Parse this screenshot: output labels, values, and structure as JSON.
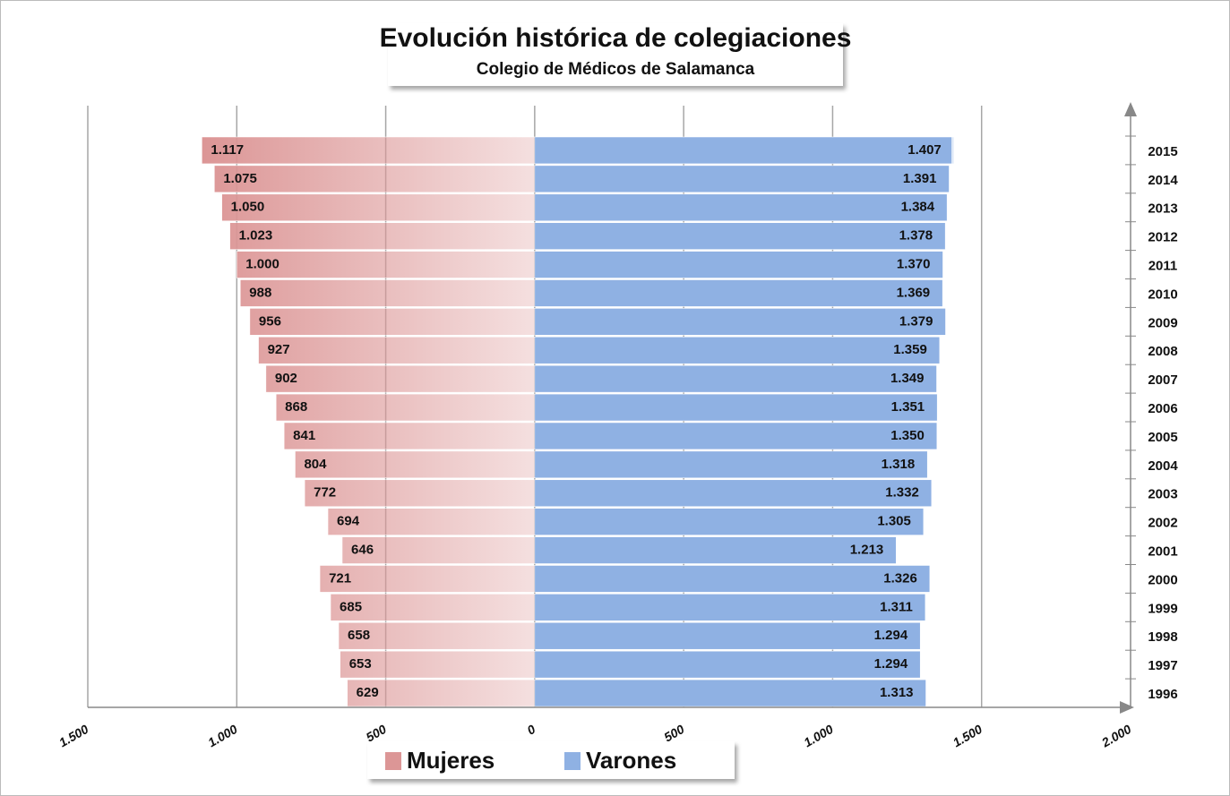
{
  "chart_data": {
    "type": "bar",
    "orientation": "horizontal",
    "title": "Evolución histórica de colegiaciones",
    "subtitle": "Colegio de Médicos de Salamanca",
    "categories": [
      "2015",
      "2014",
      "2013",
      "2012",
      "2011",
      "2010",
      "2009",
      "2008",
      "2007",
      "2006",
      "2005",
      "2004",
      "2003",
      "2002",
      "2001",
      "2000",
      "1999",
      "1998",
      "1997",
      "1996"
    ],
    "series": [
      {
        "name": "Mujeres",
        "color": "#dc9696",
        "values": [
          -1117,
          -1075,
          -1050,
          -1023,
          -1000,
          -988,
          -956,
          -927,
          -902,
          -868,
          -841,
          -804,
          -772,
          -694,
          -646,
          -721,
          -685,
          -658,
          -653,
          -629
        ],
        "value_labels": [
          "1.117",
          "1.075",
          "1.050",
          "1.023",
          "1.000",
          "988",
          "956",
          "927",
          "902",
          "868",
          "841",
          "804",
          "772",
          "694",
          "646",
          "721",
          "685",
          "658",
          "653",
          "629"
        ]
      },
      {
        "name": "Varones",
        "color": "#8fb1e3",
        "values": [
          1407,
          1391,
          1384,
          1378,
          1370,
          1369,
          1379,
          1359,
          1349,
          1351,
          1350,
          1318,
          1332,
          1305,
          1213,
          1326,
          1311,
          1294,
          1294,
          1313
        ],
        "value_labels": [
          "1.407",
          "1.391",
          "1.384",
          "1.378",
          "1.370",
          "1.369",
          "1.379",
          "1.359",
          "1.349",
          "1.351",
          "1.350",
          "1.318",
          "1.332",
          "1.305",
          "1.213",
          "1.326",
          "1.311",
          "1.294",
          "1.294",
          "1.313"
        ]
      }
    ],
    "xlim": [
      -1500,
      2000
    ],
    "xticks": [
      {
        "value": -1500,
        "label": "1.500"
      },
      {
        "value": -1000,
        "label": "1.000"
      },
      {
        "value": -500,
        "label": "500"
      },
      0,
      500,
      {
        "value": 1000,
        "label": "1.000"
      },
      {
        "value": 1500,
        "label": "1.500"
      },
      {
        "value": 2000,
        "label": "2.000"
      }
    ],
    "grid": true,
    "legend": "bottom"
  }
}
